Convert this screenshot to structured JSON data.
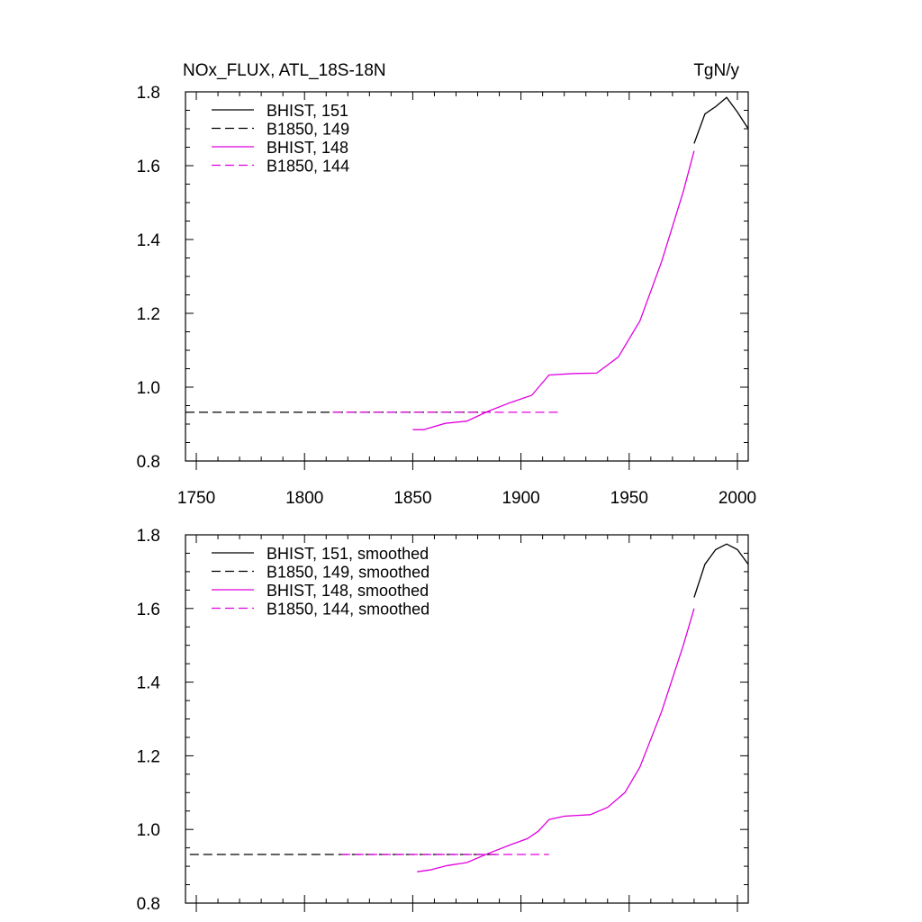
{
  "chart_data": [
    {
      "type": "line",
      "title": "NOx_FLUX, ATL_18S-18N",
      "units": "TgN/y",
      "xlim": [
        1745,
        2005
      ],
      "ylim": [
        0.8,
        1.8
      ],
      "x_ticks": [
        1750,
        1800,
        1850,
        1900,
        1950,
        2000
      ],
      "x_tick_labels": [
        "1750",
        "1800",
        "1850",
        "1900",
        "1950",
        "2000"
      ],
      "y_ticks": [
        0.8,
        1.0,
        1.2,
        1.4,
        1.6,
        1.8
      ],
      "y_tick_labels": [
        "0.8",
        "1.0",
        "1.2",
        "1.4",
        "1.6",
        "1.8"
      ],
      "legend_position": "top-left",
      "grid": false,
      "series": [
        {
          "name": "BHIST, 151",
          "color": "#000000",
          "dash": "solid",
          "x": [
            1980,
            1985,
            1990,
            1995,
            2000,
            2005
          ],
          "y": [
            1.66,
            1.74,
            1.76,
            1.785,
            1.745,
            1.7
          ]
        },
        {
          "name": "B1850, 149",
          "color": "#000000",
          "dash": "dashed",
          "x": [
            1745,
            1886
          ],
          "y": [
            0.932,
            0.932
          ]
        },
        {
          "name": "BHIST, 148",
          "color": "#e000e0",
          "dash": "solid",
          "x": [
            1850,
            1855,
            1865,
            1875,
            1885,
            1895,
            1905,
            1913,
            1925,
            1935,
            1945,
            1955,
            1965,
            1975,
            1980
          ],
          "y": [
            0.885,
            0.885,
            0.902,
            0.908,
            0.935,
            0.958,
            0.978,
            1.033,
            1.037,
            1.038,
            1.082,
            1.18,
            1.34,
            1.53,
            1.64
          ]
        },
        {
          "name": "B1850, 144",
          "color": "#e000e0",
          "dash": "dashed",
          "x": [
            1813,
            1917
          ],
          "y": [
            0.932,
            0.932
          ]
        }
      ]
    },
    {
      "type": "line",
      "title": "",
      "xlim": [
        1745,
        2005
      ],
      "ylim": [
        0.8,
        1.8
      ],
      "x_ticks": [
        1750,
        1800,
        1850,
        1900,
        1950,
        2000
      ],
      "y_ticks": [
        0.8,
        1.0,
        1.2,
        1.4,
        1.6,
        1.8
      ],
      "y_tick_labels": [
        "0.8",
        "1.0",
        "1.2",
        "1.4",
        "1.6",
        "1.8"
      ],
      "legend_position": "top-left",
      "grid": false,
      "series": [
        {
          "name": "BHIST, 151, smoothed",
          "color": "#000000",
          "dash": "solid",
          "x": [
            1980,
            1985,
            1990,
            1995,
            2000,
            2005
          ],
          "y": [
            1.63,
            1.72,
            1.76,
            1.775,
            1.76,
            1.72
          ]
        },
        {
          "name": "B1850, 149, smoothed",
          "color": "#000000",
          "dash": "dashed",
          "x": [
            1747,
            1890
          ],
          "y": [
            0.932,
            0.932
          ]
        },
        {
          "name": "BHIST, 148, smoothed",
          "color": "#e000e0",
          "dash": "solid",
          "x": [
            1852,
            1858,
            1866,
            1875,
            1885,
            1895,
            1903,
            1908,
            1913,
            1920,
            1932,
            1940,
            1948,
            1955,
            1965,
            1975,
            1980
          ],
          "y": [
            0.885,
            0.89,
            0.902,
            0.91,
            0.935,
            0.958,
            0.975,
            0.995,
            1.027,
            1.036,
            1.04,
            1.06,
            1.1,
            1.17,
            1.32,
            1.5,
            1.6
          ]
        },
        {
          "name": "B1850, 144, smoothed",
          "color": "#e000e0",
          "dash": "dashed",
          "x": [
            1817,
            1913
          ],
          "y": [
            0.932,
            0.932
          ]
        }
      ]
    }
  ]
}
